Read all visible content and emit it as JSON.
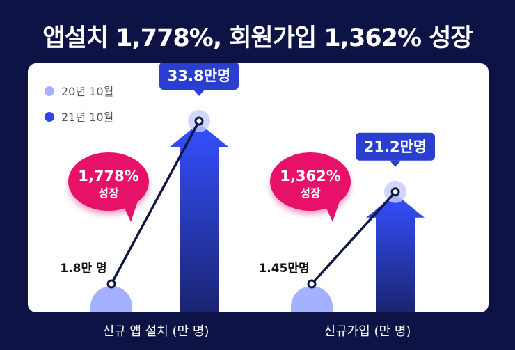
{
  "title": "앱설치 1,778%, 회원가입 1,362% 성장",
  "chart_data": {
    "type": "bar",
    "legend": [
      "20년 10월",
      "21년 10월"
    ],
    "legend_position": "top-left",
    "colors": {
      "y2020": "#a4b1ff",
      "y2021": "#2f45e6",
      "badge": "#2a3fd0",
      "growth": "#e8116a",
      "line": "#0f1640"
    },
    "groups": [
      {
        "label": "신규 앱 설치 (만 명)",
        "values": [
          1.8,
          33.8
        ],
        "value_labels": [
          "1.8만 명",
          "33.8만명"
        ],
        "growth_percent": "1,778%",
        "growth_word": "성장"
      },
      {
        "label": "신규가입 (만 명)",
        "values": [
          1.45,
          21.2
        ],
        "value_labels": [
          "1.45만명",
          "21.2만명"
        ],
        "growth_percent": "1,362%",
        "growth_word": "성장"
      }
    ]
  }
}
